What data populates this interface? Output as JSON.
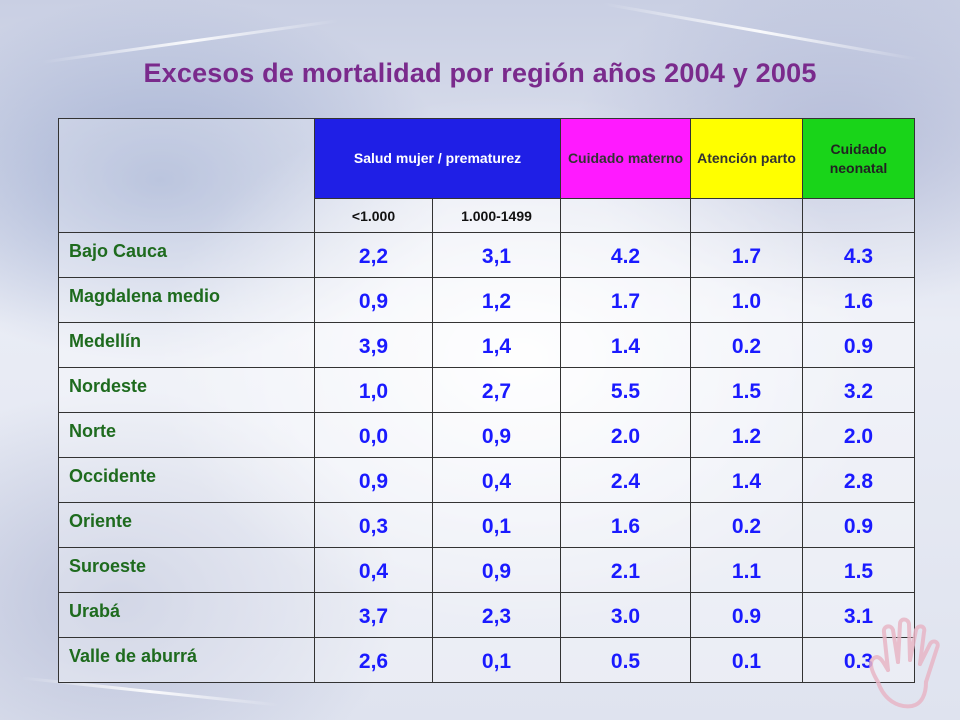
{
  "title": "Excesos de mortalidad por región años 2004 y 2005",
  "headers": {
    "salud_mujer": "Salud mujer / prematurez",
    "cuidado_materno": "Cuidado materno",
    "atencion_parto": "Atención parto",
    "cuidado_neonatal": "Cuidado neonatal",
    "sub_lt1000": "<1.000",
    "sub_1000_1499": "1.000-1499"
  },
  "rows": [
    {
      "region": "Bajo Cauca",
      "v": [
        "2,2",
        "3,1",
        "4.2",
        "1.7",
        "4.3"
      ]
    },
    {
      "region": "Magdalena medio",
      "v": [
        "0,9",
        "1,2",
        "1.7",
        "1.0",
        "1.6"
      ]
    },
    {
      "region": "Medellín",
      "v": [
        "3,9",
        "1,4",
        "1.4",
        "0.2",
        "0.9"
      ]
    },
    {
      "region": "Nordeste",
      "v": [
        "1,0",
        "2,7",
        "5.5",
        "1.5",
        "3.2"
      ]
    },
    {
      "region": "Norte",
      "v": [
        "0,0",
        "0,9",
        "2.0",
        "1.2",
        "2.0"
      ]
    },
    {
      "region": "Occidente",
      "v": [
        "0,9",
        "0,4",
        "2.4",
        "1.4",
        "2.8"
      ]
    },
    {
      "region": "Oriente",
      "v": [
        "0,3",
        "0,1",
        "1.6",
        "0.2",
        "0.9"
      ]
    },
    {
      "region": "Suroeste",
      "v": [
        "0,4",
        "0,9",
        "2.1",
        "1.1",
        "1.5"
      ]
    },
    {
      "region": "Urabá",
      "v": [
        "3,7",
        "2,3",
        "3.0",
        "0.9",
        "3.1"
      ]
    },
    {
      "region": "Valle de aburrá",
      "v": [
        "2,6",
        "0,1",
        "0.5",
        "0.1",
        "0.3"
      ]
    }
  ],
  "colors": {
    "title": "#7a2a8c",
    "header_blue": "#1f1fe6",
    "header_magenta": "#ff1aff",
    "header_yellow": "#ffff00",
    "header_green": "#19d419",
    "region_text": "#1e6b1e",
    "value_text": "#1a1aff"
  },
  "icons": {
    "hand": "hand-outline-icon"
  }
}
